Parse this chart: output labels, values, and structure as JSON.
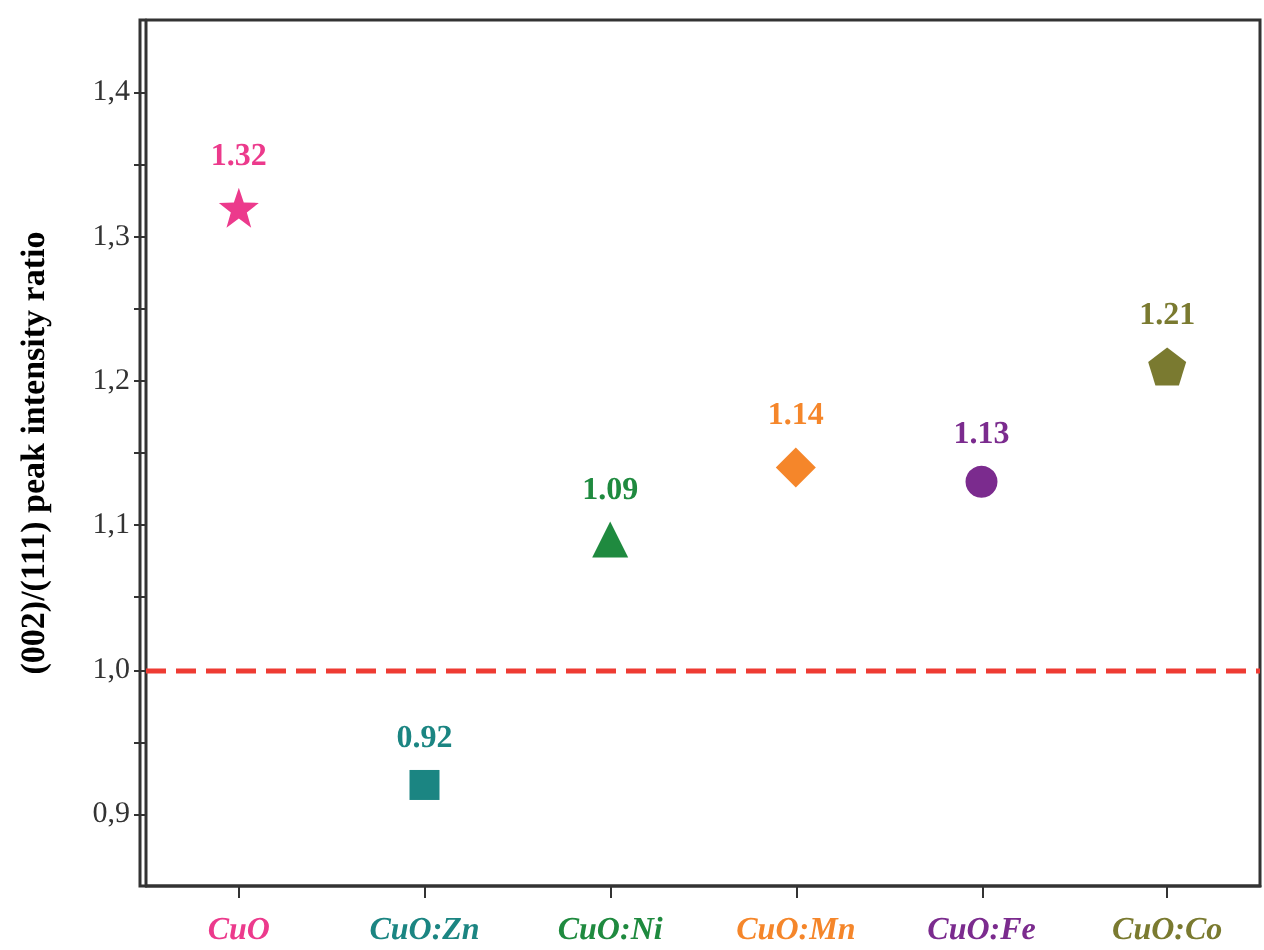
{
  "chart_data": {
    "type": "scatter",
    "ylabel": "(002)/(111) peak intensity ratio",
    "categories": [
      "CuO",
      "CuO:Zn",
      "CuO:Ni",
      "CuO:Mn",
      "CuO:Fe",
      "CuO:Co"
    ],
    "series": [
      {
        "color": "#ec3a8c",
        "marker": "star",
        "values": [
          1.32,
          null,
          null,
          null,
          null,
          null
        ]
      },
      {
        "color": "#1b8582",
        "marker": "square",
        "values": [
          null,
          0.92,
          null,
          null,
          null,
          null
        ]
      },
      {
        "color": "#1f8a3f",
        "marker": "triangle",
        "values": [
          null,
          null,
          1.09,
          null,
          null,
          null
        ]
      },
      {
        "color": "#f5862a",
        "marker": "diamond",
        "values": [
          null,
          null,
          null,
          1.14,
          null,
          null
        ]
      },
      {
        "color": "#7b2b8e",
        "marker": "circle",
        "values": [
          null,
          null,
          null,
          null,
          1.13,
          null
        ]
      },
      {
        "color": "#7a7a30",
        "values": [
          null,
          null,
          null,
          null,
          null,
          1.21
        ]
      }
    ],
    "ylim": [
      0.85,
      1.45
    ],
    "yticks": [
      {
        "value": 0.9,
        "label": "0,9"
      },
      {
        "value": 0.95,
        "label": null
      },
      {
        "value": 1.0,
        "label": "1,0"
      },
      {
        "value": 1.05,
        "label": null
      },
      {
        "value": 1.1,
        "label": "1,1"
      },
      {
        "value": 1.15,
        "label": null
      },
      {
        "value": 1.2,
        "label": "1,2"
      },
      {
        "value": 1.25,
        "label": null
      },
      {
        "value": 1.3,
        "label": "1,3"
      },
      {
        "value": 1.35,
        "label": null
      },
      {
        "value": 1.4,
        "label": "1,4"
      }
    ],
    "ref_lines": [
      {
        "axis": "y",
        "value": 1.0,
        "color": "#ee3b33",
        "line_style": "dashed"
      }
    ],
    "data_labels": true,
    "grid": false
  }
}
